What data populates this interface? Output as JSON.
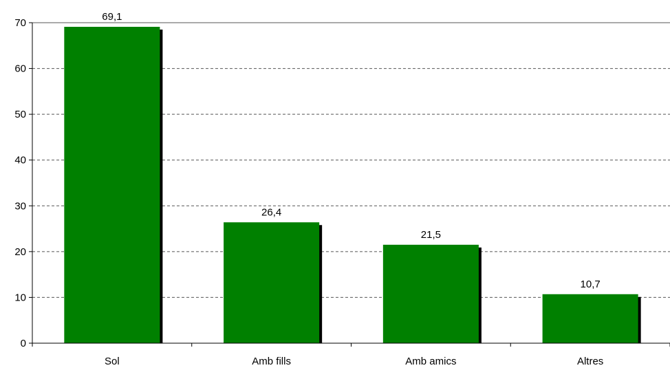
{
  "chart_data": {
    "type": "bar",
    "title": "",
    "xlabel": "",
    "ylabel": "",
    "categories": [
      "Sol",
      "Amb fills",
      "Amb amics",
      "Altres"
    ],
    "values": [
      69.1,
      26.4,
      21.5,
      10.7
    ],
    "value_labels": [
      "69,1",
      "26,4",
      "21,5",
      "10,7"
    ],
    "ylim": [
      0,
      70
    ],
    "yticks": [
      0,
      10,
      20,
      30,
      40,
      50,
      60,
      70
    ],
    "grid": true,
    "grid_style": "dashed",
    "legend": "none",
    "bar_color": "#008000",
    "shadow_color": "#000000"
  }
}
